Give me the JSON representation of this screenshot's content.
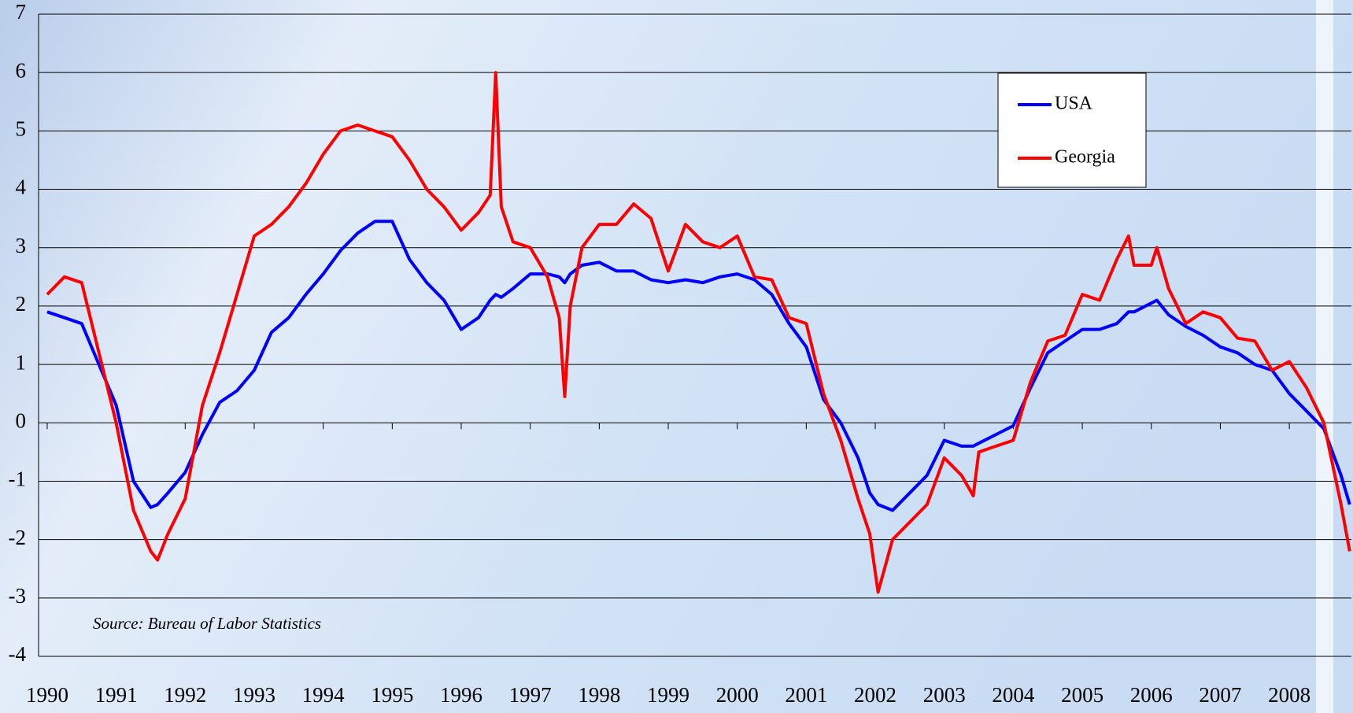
{
  "chart_data": {
    "type": "line",
    "annotations": [
      "Source: Bureau of Labor Statistics"
    ],
    "x": [
      1990,
      1990.25,
      1990.5,
      1990.75,
      1991,
      1991.25,
      1991.5,
      1991.6,
      1991.75,
      1992,
      1992.25,
      1992.5,
      1992.75,
      1993,
      1993.25,
      1993.5,
      1993.75,
      1994,
      1994.25,
      1994.5,
      1994.75,
      1995,
      1995.25,
      1995.5,
      1995.75,
      1996,
      1996.25,
      1996.42,
      1996.5,
      1996.58,
      1996.75,
      1997,
      1997.25,
      1997.42,
      1997.5,
      1997.58,
      1997.75,
      1998,
      1998.25,
      1998.5,
      1998.75,
      1999,
      1999.25,
      1999.5,
      1999.75,
      2000,
      2000.25,
      2000.5,
      2000.75,
      2001,
      2001.25,
      2001.5,
      2001.75,
      2001.92,
      2002.04,
      2002.25,
      2002.5,
      2002.75,
      2003,
      2003.25,
      2003.42,
      2003.5,
      2003.75,
      2004,
      2004.25,
      2004.5,
      2004.75,
      2005,
      2005.25,
      2005.5,
      2005.67,
      2005.75,
      2006,
      2006.08,
      2006.25,
      2006.5,
      2006.75,
      2007,
      2007.25,
      2007.5,
      2007.75,
      2008,
      2008.25,
      2008.5,
      2008.75,
      2008.875
    ],
    "series": [
      {
        "name": "USA",
        "color": "#0000ff",
        "values": [
          1.9,
          1.8,
          1.7,
          1.0,
          0.3,
          -1.0,
          -1.45,
          -1.4,
          -1.2,
          -0.85,
          -0.2,
          0.35,
          0.55,
          0.9,
          1.55,
          1.8,
          2.2,
          2.55,
          2.95,
          3.25,
          3.45,
          3.45,
          2.8,
          2.4,
          2.1,
          1.6,
          1.8,
          2.1,
          2.2,
          2.15,
          2.3,
          2.55,
          2.55,
          2.5,
          2.4,
          2.55,
          2.7,
          2.75,
          2.6,
          2.6,
          2.45,
          2.4,
          2.45,
          2.4,
          2.5,
          2.55,
          2.45,
          2.2,
          1.7,
          1.3,
          0.4,
          0.0,
          -0.6,
          -1.2,
          -1.4,
          -1.5,
          -1.2,
          -0.9,
          -0.3,
          -0.4,
          -0.4,
          -0.35,
          -0.2,
          -0.05,
          0.6,
          1.2,
          1.4,
          1.6,
          1.6,
          1.7,
          1.9,
          1.9,
          2.05,
          2.1,
          1.85,
          1.65,
          1.5,
          1.3,
          1.2,
          1.0,
          0.9,
          0.5,
          0.2,
          -0.1,
          -0.9,
          -1.4
        ]
      },
      {
        "name": "Georgia",
        "color": "#ff0000",
        "values": [
          2.2,
          2.5,
          2.4,
          1.2,
          0.0,
          -1.5,
          -2.2,
          -2.35,
          -1.9,
          -1.3,
          0.3,
          1.2,
          2.2,
          3.2,
          3.4,
          3.7,
          4.1,
          4.6,
          5.0,
          5.1,
          5.0,
          4.9,
          4.5,
          4.0,
          3.7,
          3.3,
          3.6,
          3.9,
          6.0,
          3.7,
          3.1,
          3.0,
          2.5,
          1.8,
          0.45,
          2.0,
          3.0,
          3.4,
          3.4,
          3.75,
          3.5,
          2.6,
          3.4,
          3.1,
          3.0,
          3.2,
          2.5,
          2.45,
          1.8,
          1.7,
          0.5,
          -0.3,
          -1.3,
          -1.9,
          -2.9,
          -2.0,
          -1.7,
          -1.4,
          -0.6,
          -0.9,
          -1.25,
          -0.5,
          -0.4,
          -0.3,
          0.7,
          1.4,
          1.5,
          2.2,
          2.1,
          2.8,
          3.2,
          2.7,
          2.7,
          3.0,
          2.3,
          1.7,
          1.9,
          1.8,
          1.45,
          1.4,
          0.9,
          1.05,
          0.6,
          0.0,
          -1.4,
          -2.2
        ]
      }
    ],
    "xlim": [
      1989.875,
      2008.9
    ],
    "xticks": [
      1990,
      1991,
      1992,
      1993,
      1994,
      1995,
      1996,
      1997,
      1998,
      1999,
      2000,
      2001,
      2002,
      2003,
      2004,
      2005,
      2006,
      2007,
      2008
    ],
    "ylim": [
      -4,
      7
    ],
    "yticks": [
      -4,
      -3,
      -2,
      -1,
      0,
      1,
      2,
      3,
      4,
      5,
      6,
      7
    ],
    "grid": true,
    "legend": "upper right"
  }
}
